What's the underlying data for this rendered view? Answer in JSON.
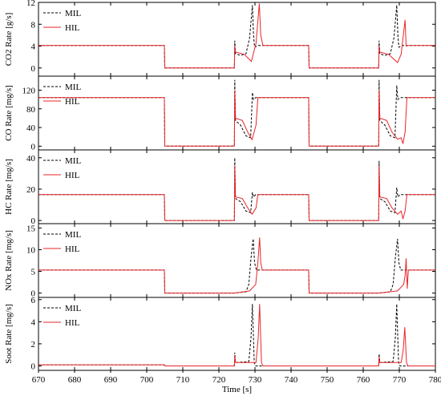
{
  "colors": {
    "MIL": "#000000",
    "HIL": "#e8262a"
  },
  "chart_data": {
    "type": "line",
    "xlabel": "Time [s]",
    "xlim": [
      670,
      780
    ],
    "xticks": [
      670,
      680,
      690,
      700,
      710,
      720,
      730,
      740,
      750,
      760,
      770,
      780
    ],
    "legend_position": "top-left",
    "panels": [
      {
        "key": "co2",
        "ylabel": "CO2 Rate [g/s]",
        "ylim": [
          -1.5,
          12
        ],
        "yticks": [
          0,
          4,
          8,
          12
        ],
        "series": [
          {
            "name": "MIL",
            "style": "dashed",
            "x": [
              670,
              704.9,
              705,
              724.3,
              724.4,
              724.6,
              726,
              727.5,
              728.5,
              729.3,
              729.6,
              729.9,
              730.8,
              744.9,
              745,
              764.3,
              764.4,
              764.6,
              766,
              767.5,
              768.5,
              769.3,
              769.6,
              769.9,
              770.8,
              780
            ],
            "y": [
              4.1,
              4.1,
              0,
              0,
              5,
              2.6,
              2.3,
              2.6,
              5.5,
              11.5,
              6,
              3.8,
              4.1,
              4.1,
              0,
              0,
              5,
              2.6,
              2.3,
              2.6,
              5.5,
              11.5,
              6,
              3.8,
              4.1,
              4.1
            ]
          },
          {
            "name": "HIL",
            "style": "solid",
            "x": [
              670,
              704.9,
              705,
              724.3,
              724.4,
              724.6,
              727,
              729,
              730.3,
              731.2,
              731.6,
              732.2,
              744.9,
              745,
              764.3,
              764.4,
              764.6,
              767,
              769.5,
              770.5,
              771.6,
              771.9,
              772.3,
              780
            ],
            "y": [
              4.1,
              4.1,
              0,
              0,
              4,
              2.9,
              2.5,
              1.2,
              4.5,
              11.8,
              6,
              4.1,
              4.1,
              0,
              0,
              4,
              2.9,
              2.5,
              1,
              2.5,
              8.8,
              4,
              4.1,
              4.1
            ]
          }
        ]
      },
      {
        "key": "co",
        "ylabel": "CO Rate [mg/s]",
        "ylim": [
          -8,
          150
        ],
        "yticks": [
          0,
          40,
          80,
          120
        ],
        "series": [
          {
            "name": "MIL",
            "style": "dashed",
            "x": [
              670,
              704.9,
              705,
              724.3,
              724.4,
              724.6,
              726,
              727.5,
              728.8,
              729.3,
              729.6,
              730.2,
              744.9,
              745,
              764.3,
              764.4,
              764.6,
              766,
              767.5,
              768.8,
              769.3,
              769.6,
              770.2,
              780
            ],
            "y": [
              104,
              104,
              0,
              0,
              142,
              55,
              45,
              22,
              18,
              115,
              100,
              104,
              104,
              0,
              0,
              142,
              55,
              45,
              22,
              18,
              130,
              100,
              104,
              104
            ]
          },
          {
            "name": "HIL",
            "style": "solid",
            "x": [
              670,
              704.9,
              705,
              724.3,
              724.4,
              724.6,
              726.5,
              728,
              729.2,
              730.3,
              730.8,
              744.9,
              745,
              764.3,
              764.4,
              764.6,
              766.5,
              768,
              769.5,
              770.5,
              771,
              771.6,
              772.1,
              780
            ],
            "y": [
              104,
              104,
              0,
              0,
              120,
              60,
              55,
              30,
              14,
              45,
              104,
              104,
              0,
              0,
              120,
              60,
              55,
              30,
              15,
              18,
              5,
              30,
              104,
              104
            ]
          }
        ]
      },
      {
        "key": "hc",
        "ylabel": "HC Rate [mg/s]",
        "ylim": [
          -2,
          45
        ],
        "yticks": [
          0,
          20,
          40
        ],
        "series": [
          {
            "name": "MIL",
            "style": "dashed",
            "x": [
              670,
              704.9,
              705,
              724.3,
              724.4,
              724.6,
              726,
              727.5,
              728.8,
              729.3,
              729.6,
              730.2,
              744.9,
              745,
              764.3,
              764.4,
              764.6,
              766,
              767.5,
              768.8,
              769.3,
              769.6,
              770.2,
              780
            ],
            "y": [
              16.5,
              16.5,
              0,
              0,
              40,
              14,
              12,
              6,
              5,
              18,
              15,
              16.5,
              16.5,
              0,
              0,
              38,
              14,
              12,
              6,
              5,
              21,
              15,
              16.5,
              16.5
            ]
          },
          {
            "name": "HIL",
            "style": "solid",
            "x": [
              670,
              704.9,
              705,
              724.3,
              724.4,
              724.6,
              726.5,
              728,
              729.2,
              730.3,
              730.8,
              744.9,
              745,
              764.3,
              764.4,
              764.6,
              766.5,
              768,
              769.5,
              770.5,
              771,
              771.6,
              772.1,
              780
            ],
            "y": [
              16.5,
              16.5,
              0,
              0,
              35,
              15,
              14,
              8,
              4,
              8,
              16.5,
              16.5,
              0,
              0,
              35,
              15,
              14,
              8,
              4,
              6,
              1,
              6,
              16.5,
              16.5
            ]
          }
        ]
      },
      {
        "key": "nox",
        "ylabel": "NOx Rate [mg/s]",
        "ylim": [
          -1,
          16
        ],
        "yticks": [
          0,
          5,
          10,
          15
        ],
        "series": [
          {
            "name": "MIL",
            "style": "dashed",
            "x": [
              670,
              704.9,
              705,
              724.3,
              727.5,
              728.3,
              728.9,
              729.5,
              729.9,
              730.4,
              744.9,
              745,
              764.3,
              767.5,
              768.3,
              768.9,
              769.5,
              769.9,
              770.4,
              780
            ],
            "y": [
              5.3,
              5.3,
              0,
              0,
              0.3,
              2,
              8,
              12.5,
              7,
              5.3,
              5.3,
              0,
              0,
              0.3,
              2,
              8,
              12.5,
              7,
              5.3,
              5.3
            ]
          },
          {
            "name": "HIL",
            "style": "solid",
            "x": [
              670,
              704.9,
              705,
              724.3,
              728.5,
              730.2,
              730.8,
              731.3,
              731.6,
              732,
              744.9,
              745,
              764.3,
              769.5,
              771.2,
              771.6,
              771.9,
              772.2,
              772.5,
              780
            ],
            "y": [
              5.3,
              5.3,
              0,
              0,
              0.5,
              2,
              7,
              12.8,
              7,
              5.3,
              5.3,
              0,
              0,
              0.5,
              2,
              4,
              8,
              1,
              5.3,
              5.3
            ]
          }
        ]
      },
      {
        "key": "soot",
        "ylabel": "Soot Rate [mg/s]",
        "ylim": [
          -0.4,
          6.2
        ],
        "yticks": [
          0,
          2,
          4,
          6
        ],
        "series": [
          {
            "name": "MIL",
            "style": "dashed",
            "x": [
              670,
              704.9,
              705,
              724.3,
              724.4,
              724.6,
              728.3,
              728.9,
              729.3,
              729.8,
              730.2,
              764.3,
              764.4,
              764.6,
              768.3,
              768.9,
              769.3,
              769.8,
              770.2,
              780
            ],
            "y": [
              0.1,
              0.1,
              0,
              0,
              1.2,
              0.3,
              0.4,
              2.5,
              5.6,
              0.3,
              0,
              0,
              1.1,
              0.3,
              0.4,
              2.5,
              5.6,
              0.3,
              0,
              0
            ]
          },
          {
            "name": "HIL",
            "style": "solid",
            "x": [
              670,
              704.9,
              705,
              724.3,
              724.4,
              724.6,
              730.3,
              730.9,
              731.3,
              731.8,
              732.2,
              764.3,
              764.4,
              764.6,
              770.5,
              771.1,
              771.5,
              772,
              772.4,
              780
            ],
            "y": [
              0.1,
              0.1,
              0,
              0,
              0.9,
              0.3,
              0.3,
              2.5,
              5.6,
              0.3,
              0,
              0,
              0.8,
              0.3,
              0.3,
              1.5,
              3.5,
              0.3,
              0,
              0
            ]
          }
        ]
      }
    ]
  }
}
